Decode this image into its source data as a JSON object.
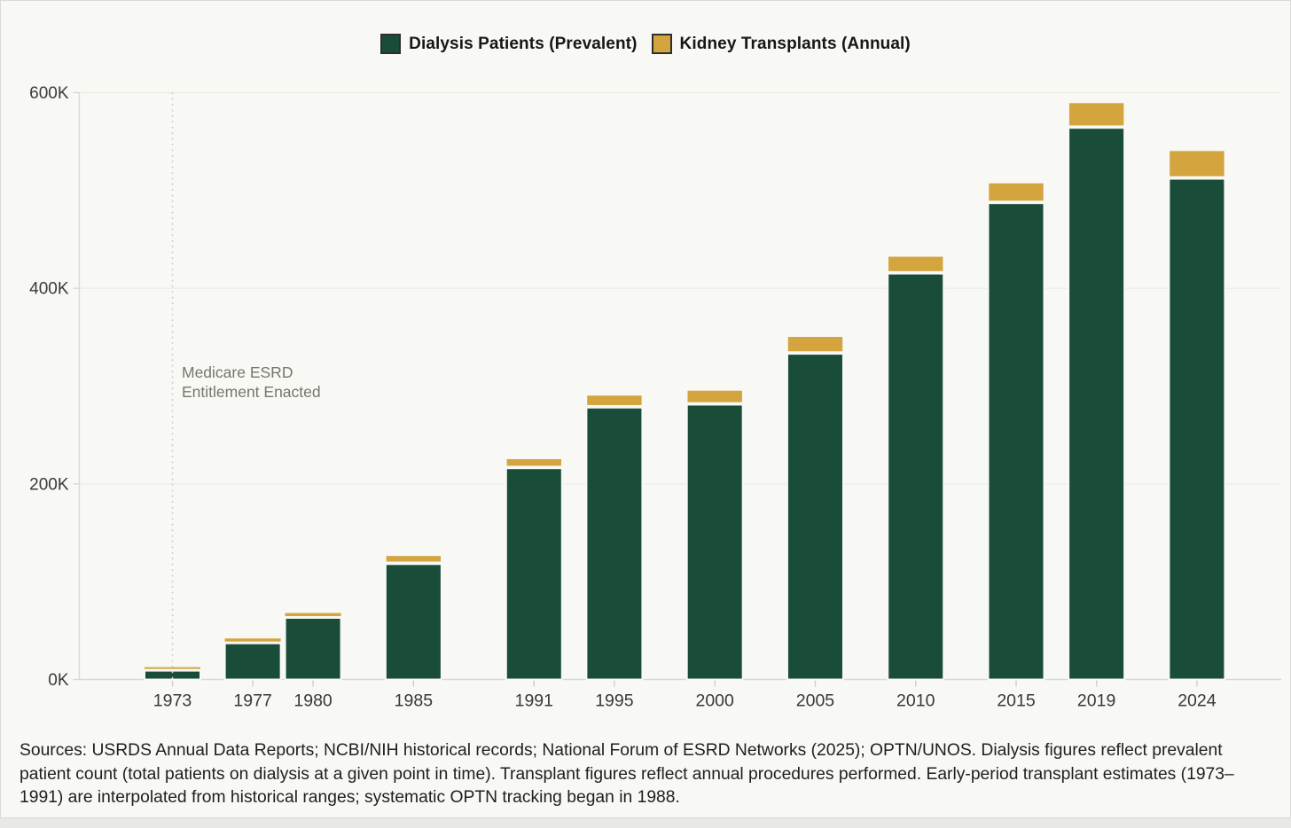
{
  "legend": {
    "items": [
      {
        "label": "Dialysis Patients (Prevalent)",
        "color": "#1a4c3a"
      },
      {
        "label": "Kidney Transplants (Annual)",
        "color": "#d4a43f"
      }
    ]
  },
  "footer": {
    "text": "Sources: USRDS Annual Data Reports; NCBI/NIH historical records; National Forum of ESRD Networks (2025); OPTN/UNOS. Dialysis figures reflect prevalent patient count (total patients on dialysis at a given point in time). Transplant figures reflect annual procedures performed. Early-period transplant estimates (1973–1991) are interpolated from historical ranges; systematic OPTN tracking began in 1988."
  },
  "chart_data": {
    "type": "bar",
    "stacked": true,
    "x_years": [
      1973,
      1977,
      1980,
      1985,
      1991,
      1995,
      2000,
      2005,
      2010,
      2015,
      2019,
      2024
    ],
    "series": [
      {
        "name": "Dialysis Patients (Prevalent)",
        "color": "#1a4c3a",
        "values_thousands": [
          9,
          37,
          63,
          118,
          216,
          278,
          281,
          333,
          415,
          487,
          564,
          512
        ]
      },
      {
        "name": "Kidney Transplants (Annual)",
        "color": "#d4a43f",
        "values_thousands": [
          2,
          5,
          5,
          9,
          10,
          13,
          15,
          18,
          18,
          21,
          26,
          29
        ]
      }
    ],
    "y_axis": {
      "max": 600,
      "unit": "thousands",
      "ticks": [
        {
          "value": 0,
          "label": "0K"
        },
        {
          "value": 200,
          "label": "200K"
        },
        {
          "value": 400,
          "label": "400K"
        },
        {
          "value": 600,
          "label": "600K"
        }
      ]
    },
    "annotation": {
      "year": 1973,
      "text_lines": [
        "Medicare ESRD",
        "Entitlement Enacted"
      ]
    },
    "legend_position": "top-center",
    "grid": true
  }
}
